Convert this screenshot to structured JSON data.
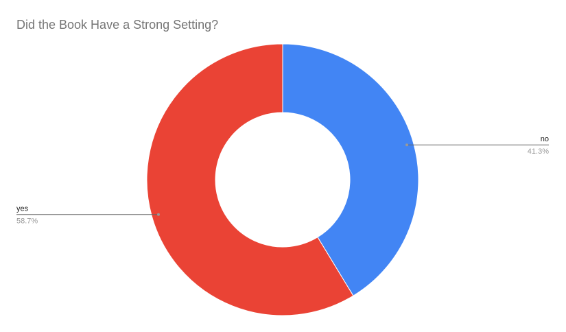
{
  "chart_data": {
    "type": "donut",
    "title": "Did the Book Have a Strong Setting?",
    "categories": [
      "no",
      "yes"
    ],
    "values": [
      41.3,
      58.7
    ],
    "value_labels": [
      "41.3%",
      "58.7%"
    ],
    "colors": [
      "#4285f4",
      "#ea4335"
    ]
  }
}
